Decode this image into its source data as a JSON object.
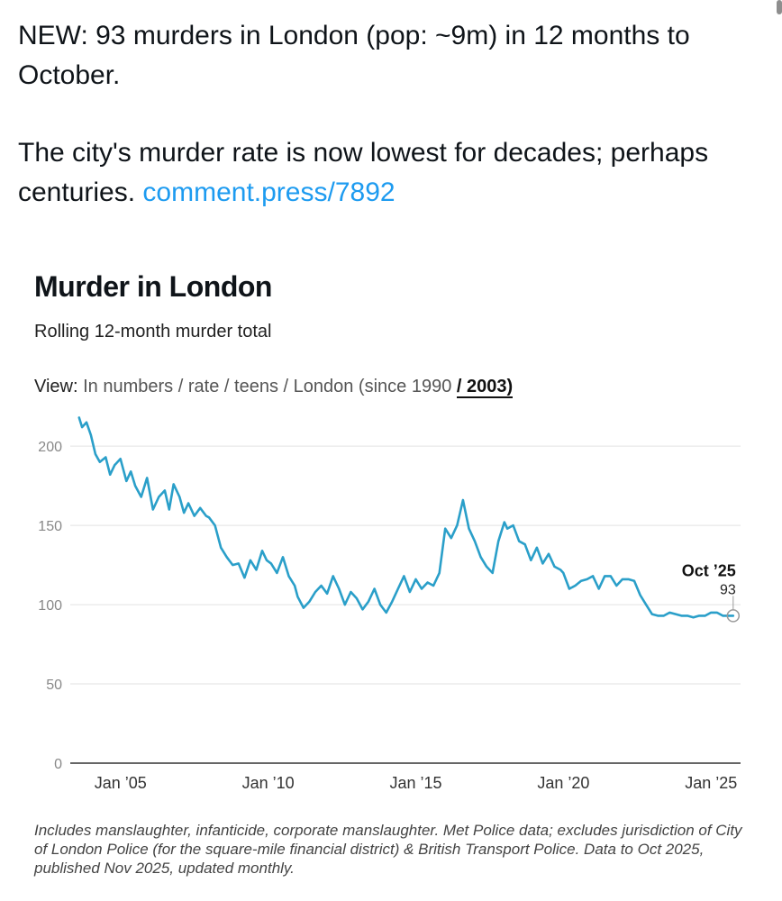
{
  "tweet": {
    "line1": "NEW: 93 murders in London (pop: ~9m) in 12 months to October.",
    "line2": "The city's murder rate is now lowest for decades; perhaps centuries.",
    "link": "comment.press/7892"
  },
  "chart_data": {
    "type": "line",
    "title": "Murder in London",
    "subtitle": "Rolling 12-month murder total",
    "view_label": "View:",
    "view_options": [
      "In numbers",
      "rate",
      "teens",
      "London (since 1990"
    ],
    "view_selected": "2003)",
    "xlabel": "",
    "ylabel": "",
    "ylim": [
      0,
      220
    ],
    "xlim": [
      2003.3,
      2026.0
    ],
    "y_ticks": [
      "0",
      "50",
      "100",
      "150",
      "200"
    ],
    "x_ticks": [
      {
        "label": "Jan ’05",
        "value": 2005.0
      },
      {
        "label": "Jan ’10",
        "value": 2010.0
      },
      {
        "label": "Jan ’15",
        "value": 2015.0
      },
      {
        "label": "Jan ’20",
        "value": 2020.0
      },
      {
        "label": "Jan ’25",
        "value": 2025.0
      }
    ],
    "grid": true,
    "series": [
      {
        "name": "Rolling 12-month murder total",
        "color": "#2a9fc9",
        "x": [
          2003.6,
          2003.7,
          2003.85,
          2004.0,
          2004.15,
          2004.3,
          2004.5,
          2004.65,
          2004.8,
          2005.0,
          2005.2,
          2005.35,
          2005.5,
          2005.7,
          2005.9,
          2006.1,
          2006.3,
          2006.5,
          2006.65,
          2006.8,
          2007.0,
          2007.15,
          2007.3,
          2007.5,
          2007.7,
          2007.9,
          2008.0,
          2008.2,
          2008.4,
          2008.6,
          2008.8,
          2009.0,
          2009.2,
          2009.4,
          2009.6,
          2009.8,
          2009.95,
          2010.1,
          2010.3,
          2010.5,
          2010.7,
          2010.9,
          2011.0,
          2011.2,
          2011.4,
          2011.6,
          2011.8,
          2012.0,
          2012.2,
          2012.4,
          2012.6,
          2012.8,
          2013.0,
          2013.2,
          2013.4,
          2013.6,
          2013.8,
          2014.0,
          2014.2,
          2014.4,
          2014.6,
          2014.8,
          2015.0,
          2015.2,
          2015.4,
          2015.6,
          2015.8,
          2016.0,
          2016.2,
          2016.4,
          2016.6,
          2016.8,
          2017.0,
          2017.2,
          2017.4,
          2017.6,
          2017.8,
          2018.0,
          2018.1,
          2018.3,
          2018.5,
          2018.7,
          2018.9,
          2019.1,
          2019.3,
          2019.5,
          2019.7,
          2019.9,
          2020.0,
          2020.2,
          2020.4,
          2020.6,
          2020.8,
          2021.0,
          2021.2,
          2021.4,
          2021.6,
          2021.8,
          2022.0,
          2022.2,
          2022.4,
          2022.6,
          2022.8,
          2023.0,
          2023.2,
          2023.4,
          2023.6,
          2023.8,
          2024.0,
          2024.2,
          2024.4,
          2024.6,
          2024.8,
          2025.0,
          2025.2,
          2025.4,
          2025.6,
          2025.75
        ],
        "values": [
          218,
          212,
          215,
          207,
          195,
          190,
          193,
          182,
          188,
          192,
          178,
          184,
          175,
          168,
          180,
          160,
          168,
          172,
          160,
          176,
          168,
          158,
          164,
          156,
          161,
          156,
          155,
          150,
          136,
          130,
          125,
          126,
          117,
          128,
          122,
          134,
          128,
          126,
          120,
          130,
          118,
          112,
          105,
          98,
          102,
          108,
          112,
          107,
          118,
          110,
          100,
          108,
          104,
          97,
          102,
          110,
          100,
          95,
          102,
          110,
          118,
          108,
          116,
          110,
          114,
          112,
          120,
          148,
          142,
          150,
          166,
          148,
          140,
          130,
          124,
          120,
          140,
          152,
          148,
          150,
          140,
          138,
          128,
          136,
          126,
          132,
          124,
          122,
          120,
          110,
          112,
          115,
          116,
          118,
          110,
          118,
          118,
          112,
          116,
          116,
          115,
          106,
          100,
          94,
          93,
          93,
          95,
          94,
          93,
          93,
          92,
          93,
          93,
          95,
          95,
          93,
          93,
          93
        ]
      }
    ],
    "annotation": {
      "label": "Oct ’25",
      "value": "93",
      "x": 2025.75,
      "y": 93
    }
  },
  "footnote": "Includes manslaughter, infanticide, corporate manslaughter. Met Police data; excludes jurisdiction of City of London Police (for the square-mile financial district) & British Transport Police. Data to Oct 2025, published Nov 2025, updated monthly."
}
